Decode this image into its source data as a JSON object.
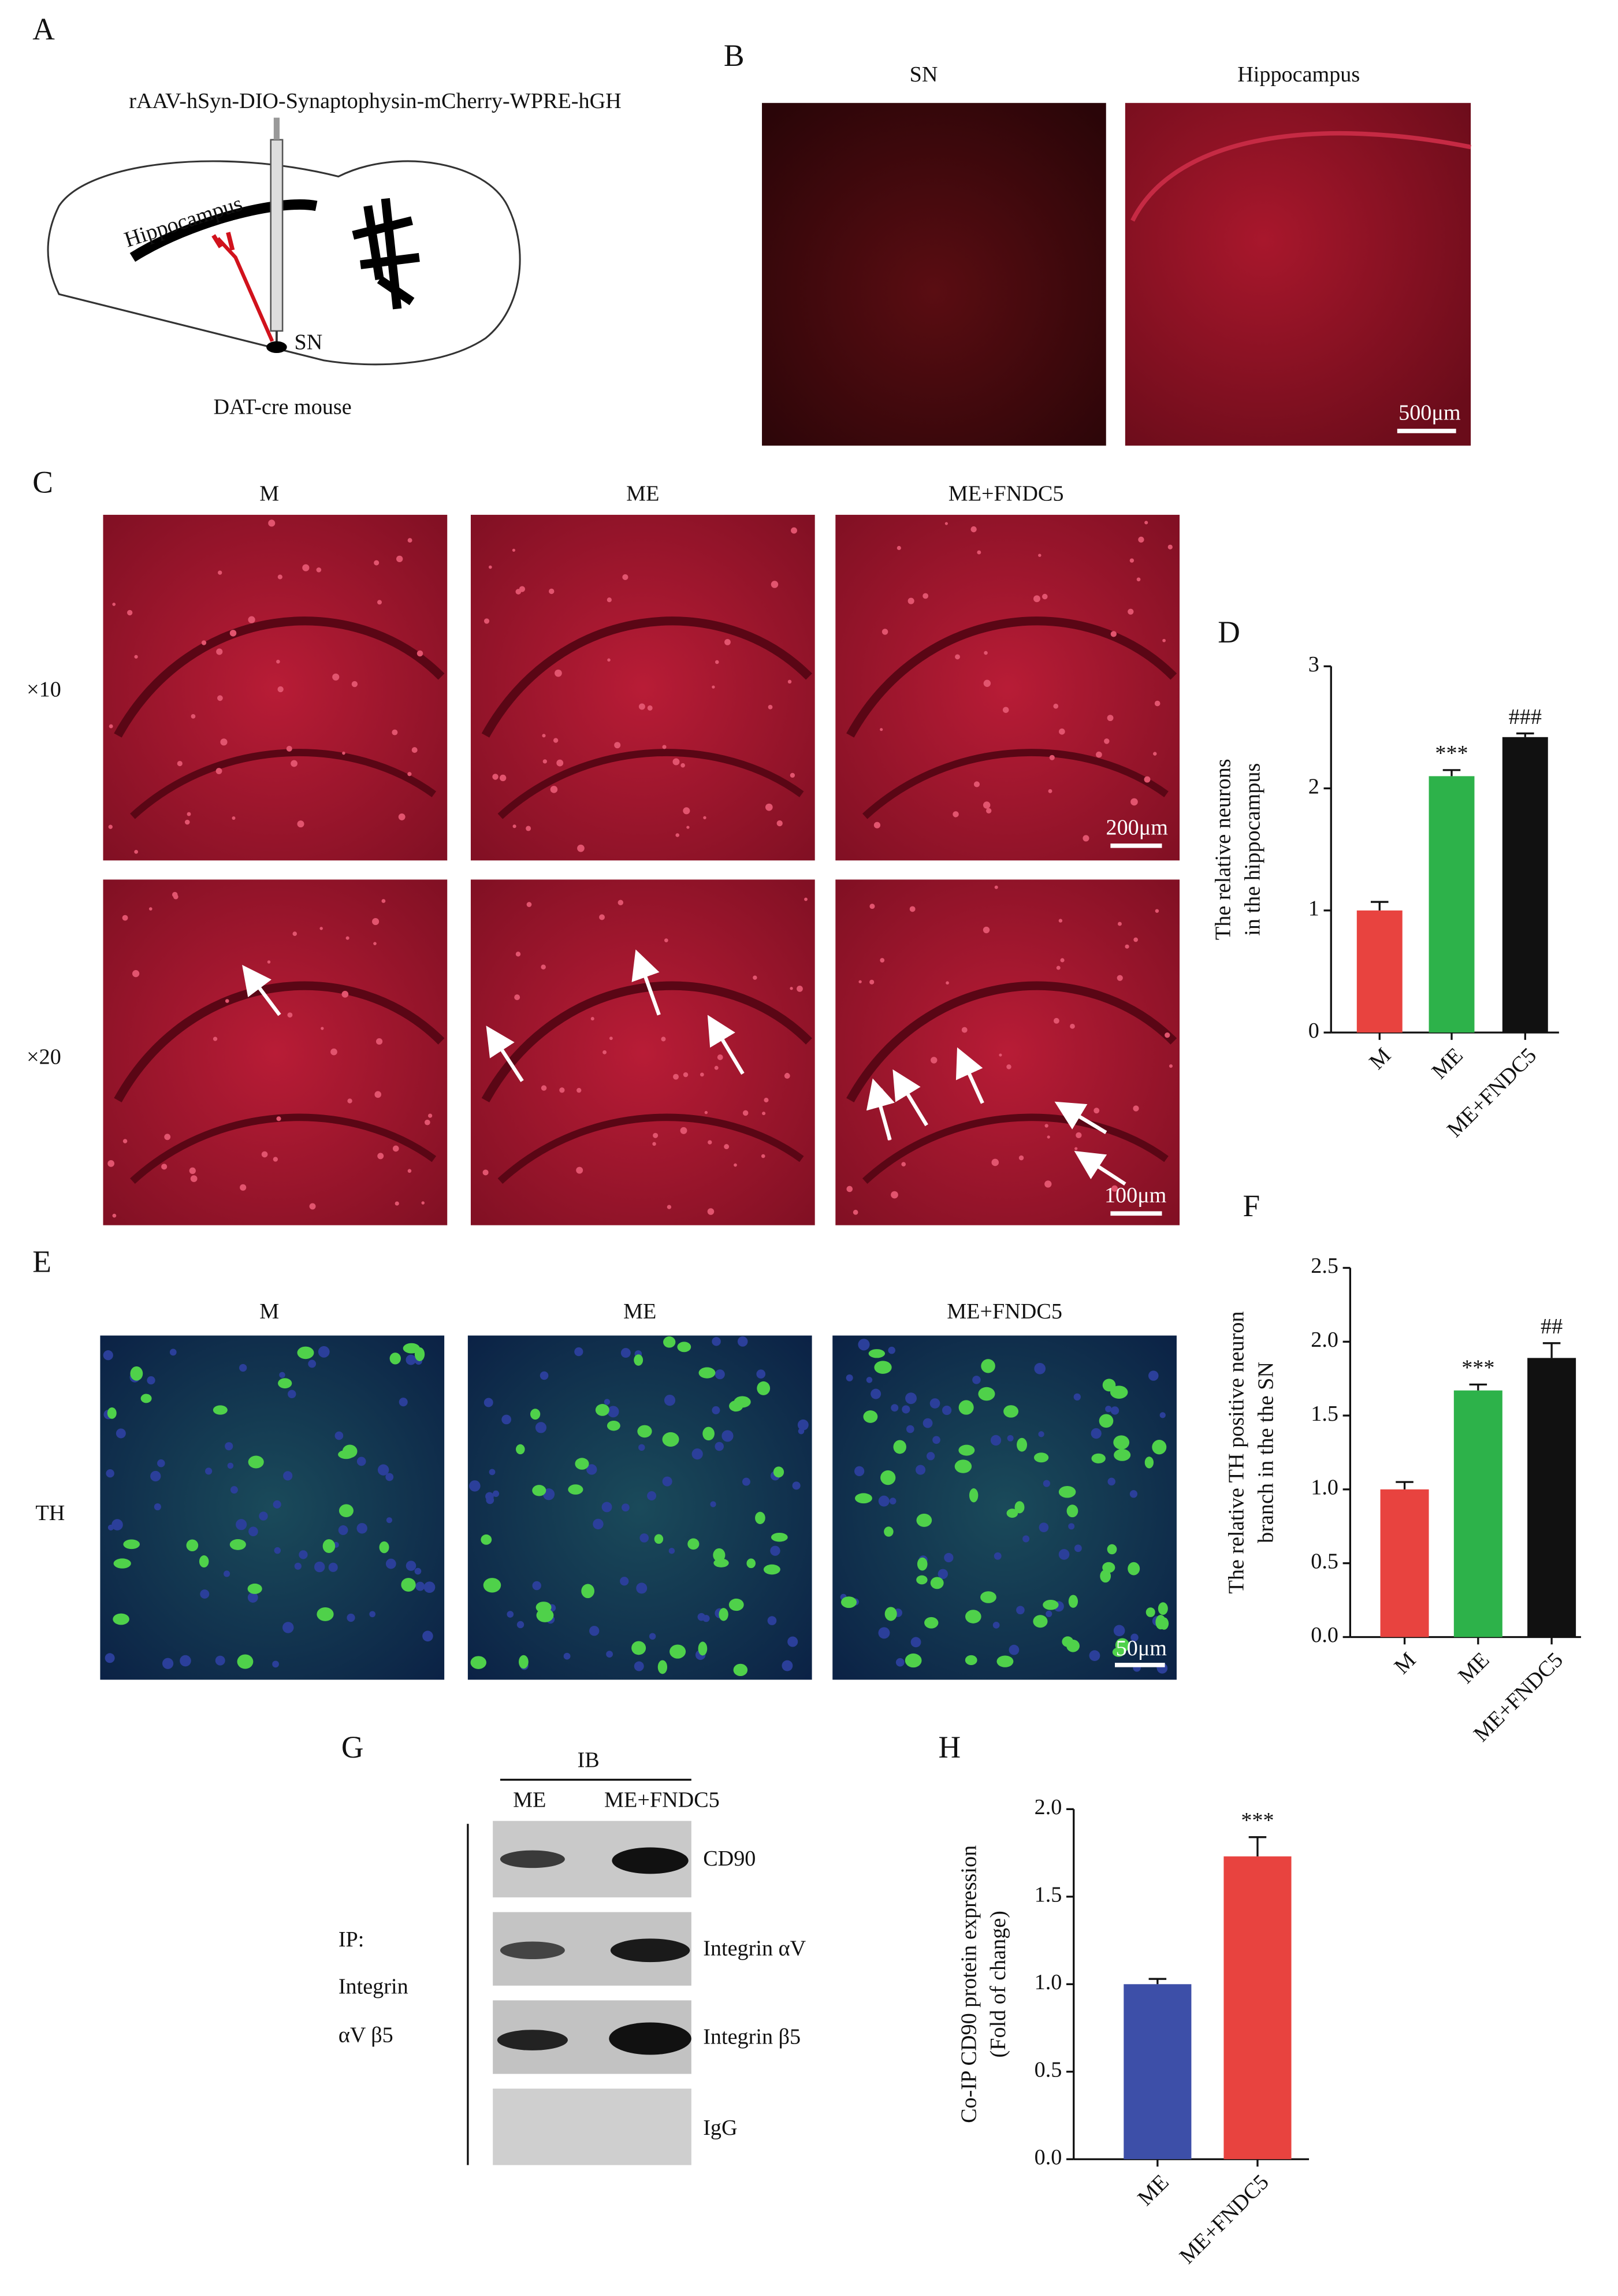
{
  "panel_labels": [
    "A",
    "B",
    "C",
    "D",
    "E",
    "F",
    "G",
    "H"
  ],
  "A": {
    "construct": "rAAV-hSyn-DIO-Synaptophysin-mCherry-WPRE-hGH",
    "region_label": "Hippocampus",
    "sn_label": "SN",
    "caption": "DAT-cre mouse"
  },
  "B": {
    "titles": [
      "SN",
      "Hippocampus"
    ],
    "scale_bar": "500μm"
  },
  "C": {
    "columns": [
      "M",
      "ME",
      "ME+FNDC5"
    ],
    "rows": [
      "×10",
      "×20"
    ],
    "scale_bars": [
      "200μm",
      "100μm"
    ]
  },
  "E": {
    "columns": [
      "M",
      "ME",
      "ME+FNDC5"
    ],
    "row": "TH",
    "scale_bar": "50μm"
  },
  "G": {
    "ib": "IB",
    "lanes": [
      "ME",
      "ME+FNDC5"
    ],
    "bands": [
      "CD90",
      "Integrin αV",
      "Integrin β5",
      "IgG"
    ],
    "ip": [
      "IP:",
      "Integrin",
      "αV β5"
    ]
  },
  "chart_data": [
    {
      "type": "bar",
      "ylabel": [
        "The relative neurons",
        "in the hippocampus"
      ],
      "categories": [
        "M",
        "ME",
        "ME+FNDC5"
      ],
      "values": [
        1.0,
        2.1,
        2.42
      ],
      "errors": [
        0.07,
        0.05,
        0.03
      ],
      "annotations": [
        null,
        "***",
        "###"
      ],
      "colors": [
        "#e8433f",
        "#2db24a",
        "#111111"
      ],
      "ylim": [
        0,
        3
      ],
      "yticks": [
        0,
        1,
        2,
        3
      ]
    },
    {
      "type": "bar",
      "ylabel": [
        "The relative TH positive neuron",
        "branch in the the SN"
      ],
      "categories": [
        "M",
        "ME",
        "ME+FNDC5"
      ],
      "values": [
        1.0,
        1.67,
        1.89
      ],
      "errors": [
        0.05,
        0.04,
        0.1
      ],
      "annotations": [
        null,
        "***",
        "##"
      ],
      "colors": [
        "#e8433f",
        "#2db24a",
        "#111111"
      ],
      "ylim": [
        0,
        2.5
      ],
      "yticks": [
        {
          "value": 0,
          "label": "0.0"
        },
        {
          "value": 0.5,
          "label": "0.5"
        },
        {
          "value": 1,
          "label": "1.0"
        },
        {
          "value": 1.5,
          "label": "1.5"
        },
        {
          "value": 2,
          "label": "2.0"
        },
        {
          "value": 2.5,
          "label": "2.5"
        }
      ]
    },
    {
      "type": "bar",
      "ylabel": [
        "Co-IP CD90 protein expression",
        "(Fold of change)"
      ],
      "categories": [
        "ME",
        "ME+FNDC5"
      ],
      "values": [
        1.0,
        1.73
      ],
      "errors": [
        0.03,
        0.11
      ],
      "annotations": [
        null,
        "***"
      ],
      "colors": [
        "#3d4fa8",
        "#e8433f"
      ],
      "ylim": [
        0,
        2
      ],
      "yticks": [
        {
          "value": 0,
          "label": "0.0"
        },
        {
          "value": 0.5,
          "label": "0.5"
        },
        {
          "value": 1,
          "label": "1.0"
        },
        {
          "value": 1.5,
          "label": "1.5"
        },
        {
          "value": 2,
          "label": "2.0"
        }
      ]
    }
  ]
}
